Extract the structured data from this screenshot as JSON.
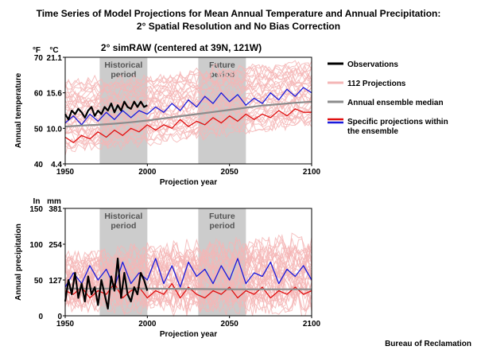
{
  "figure": {
    "title_line1": "Time Series of Model Projections for Mean Annual Temperature and Annual Precipitation:",
    "title_line2": "2° Spatial Resolution and No Bias Correction",
    "subtitle": "2° simRAW (centered at 39N, 121W)",
    "credit": "Bureau of Reclamation"
  },
  "legend": {
    "items": [
      {
        "label": "Observations",
        "color": "#000000"
      },
      {
        "label": "112 Projections",
        "color": "#f4b6b6"
      },
      {
        "label": "Annual ensemble median",
        "color": "#8c8c8c"
      },
      {
        "label_line1": "Specific projections within",
        "label_line2": "the ensemble",
        "colors": [
          "#e01010",
          "#1a1adc"
        ]
      }
    ]
  },
  "shading": {
    "historical": {
      "label_line1": "Historical",
      "label_line2": "period",
      "start": 1971,
      "end": 2000
    },
    "future": {
      "label_line1": "Future",
      "label_line2": "period",
      "start": 2031,
      "end": 2060
    }
  },
  "colors": {
    "projections": "#f4b6b6",
    "median": "#8c8c8c",
    "red": "#e01010",
    "blue": "#1a1adc",
    "obs": "#000000",
    "shade": "#cccccc"
  },
  "chart_data": [
    {
      "type": "line",
      "ylabel": "Annual temperature",
      "xlabel": "Projection year",
      "unit_left": "°F",
      "unit_right": "°C",
      "xlim": [
        1950,
        2100
      ],
      "ylim": [
        40,
        70
      ],
      "xticks": [
        "1950",
        "2000",
        "2050",
        "2100"
      ],
      "yticks_f": [
        "40",
        "50",
        "60",
        "70"
      ],
      "yticks_c": [
        "4.4",
        "10.0",
        "15.6",
        "21.1"
      ],
      "observations": [
        [
          1950,
          54.0
        ],
        [
          1952,
          52.5
        ],
        [
          1954,
          55.0
        ],
        [
          1956,
          54.0
        ],
        [
          1958,
          55.5
        ],
        [
          1960,
          54.5
        ],
        [
          1962,
          53.0
        ],
        [
          1964,
          55.0
        ],
        [
          1966,
          56.0
        ],
        [
          1968,
          53.5
        ],
        [
          1970,
          55.0
        ],
        [
          1972,
          54.0
        ],
        [
          1974,
          56.0
        ],
        [
          1976,
          55.0
        ],
        [
          1978,
          57.0
        ],
        [
          1980,
          54.5
        ],
        [
          1982,
          56.5
        ],
        [
          1984,
          55.0
        ],
        [
          1986,
          57.5
        ],
        [
          1988,
          56.0
        ],
        [
          1990,
          55.5
        ],
        [
          1992,
          57.5
        ],
        [
          1994,
          56.0
        ],
        [
          1996,
          57.5
        ],
        [
          1998,
          56.0
        ],
        [
          2000,
          56.5
        ]
      ],
      "median": [
        [
          1950,
          50.5
        ],
        [
          1960,
          50.8
        ],
        [
          1970,
          51.0
        ],
        [
          1980,
          51.3
        ],
        [
          1990,
          51.7
        ],
        [
          2000,
          52.2
        ],
        [
          2010,
          52.8
        ],
        [
          2020,
          53.4
        ],
        [
          2030,
          54.0
        ],
        [
          2040,
          54.6
        ],
        [
          2050,
          55.2
        ],
        [
          2060,
          55.8
        ],
        [
          2070,
          56.4
        ],
        [
          2080,
          56.8
        ],
        [
          2090,
          57.2
        ],
        [
          2100,
          57.5
        ]
      ],
      "red_projection": [
        [
          1950,
          47.5
        ],
        [
          1955,
          46.0
        ],
        [
          1960,
          48.0
        ],
        [
          1965,
          47.0
        ],
        [
          1970,
          49.0
        ],
        [
          1975,
          47.5
        ],
        [
          1980,
          49.5
        ],
        [
          1985,
          48.0
        ],
        [
          1990,
          50.0
        ],
        [
          1995,
          49.0
        ],
        [
          2000,
          51.0
        ],
        [
          2005,
          49.5
        ],
        [
          2010,
          51.0
        ],
        [
          2015,
          50.0
        ],
        [
          2020,
          52.5
        ],
        [
          2025,
          50.5
        ],
        [
          2030,
          52.0
        ],
        [
          2035,
          51.0
        ],
        [
          2040,
          53.0
        ],
        [
          2045,
          51.5
        ],
        [
          2050,
          53.5
        ],
        [
          2055,
          52.0
        ],
        [
          2060,
          54.0
        ],
        [
          2065,
          52.5
        ],
        [
          2070,
          54.0
        ],
        [
          2075,
          53.0
        ],
        [
          2080,
          55.0
        ],
        [
          2085,
          53.5
        ],
        [
          2090,
          55.5
        ],
        [
          2095,
          54.5
        ],
        [
          2100,
          54.5
        ]
      ],
      "blue_projection": [
        [
          1950,
          51.5
        ],
        [
          1955,
          53.5
        ],
        [
          1960,
          51.0
        ],
        [
          1965,
          54.0
        ],
        [
          1970,
          52.0
        ],
        [
          1975,
          54.5
        ],
        [
          1980,
          52.5
        ],
        [
          1985,
          55.0
        ],
        [
          1990,
          53.0
        ],
        [
          1995,
          55.0
        ],
        [
          2000,
          54.0
        ],
        [
          2005,
          56.0
        ],
        [
          2010,
          54.5
        ],
        [
          2015,
          57.0
        ],
        [
          2020,
          55.0
        ],
        [
          2025,
          58.0
        ],
        [
          2030,
          56.0
        ],
        [
          2035,
          59.0
        ],
        [
          2040,
          57.0
        ],
        [
          2045,
          60.0
        ],
        [
          2050,
          57.5
        ],
        [
          2055,
          59.5
        ],
        [
          2060,
          56.5
        ],
        [
          2065,
          58.5
        ],
        [
          2070,
          57.0
        ],
        [
          2075,
          60.0
        ],
        [
          2080,
          58.0
        ],
        [
          2085,
          61.0
        ],
        [
          2090,
          59.0
        ],
        [
          2095,
          61.5
        ],
        [
          2100,
          60.0
        ]
      ],
      "projection_envelope": {
        "low": [
          [
            1950,
            44
          ],
          [
            2000,
            46
          ],
          [
            2050,
            49
          ],
          [
            2100,
            51
          ]
        ],
        "high": [
          [
            1950,
            63
          ],
          [
            2000,
            64
          ],
          [
            2050,
            67
          ],
          [
            2100,
            68
          ]
        ]
      }
    },
    {
      "type": "line",
      "ylabel": "Annual precipitation",
      "xlabel": "Projection year",
      "unit_left": "In",
      "unit_right": "mm",
      "xlim": [
        1950,
        2100
      ],
      "ylim": [
        0,
        150
      ],
      "xticks": [
        "1950",
        "2000",
        "2050",
        "2100"
      ],
      "yticks_in": [
        "0",
        "50",
        "100",
        "150"
      ],
      "yticks_mm": [
        "0",
        "127",
        "254",
        "381"
      ],
      "observations": [
        [
          1950,
          20
        ],
        [
          1952,
          50
        ],
        [
          1954,
          30
        ],
        [
          1956,
          60
        ],
        [
          1958,
          25
        ],
        [
          1960,
          45
        ],
        [
          1962,
          20
        ],
        [
          1964,
          55
        ],
        [
          1966,
          30
        ],
        [
          1968,
          40
        ],
        [
          1970,
          15
        ],
        [
          1972,
          50
        ],
        [
          1974,
          30
        ],
        [
          1976,
          10
        ],
        [
          1978,
          55
        ],
        [
          1980,
          35
        ],
        [
          1982,
          80
        ],
        [
          1984,
          25
        ],
        [
          1986,
          60
        ],
        [
          1988,
          30
        ],
        [
          1990,
          20
        ],
        [
          1992,
          40
        ],
        [
          1994,
          30
        ],
        [
          1996,
          60
        ],
        [
          1998,
          50
        ],
        [
          2000,
          35
        ]
      ],
      "median": [
        [
          1950,
          38
        ],
        [
          2000,
          38
        ],
        [
          2050,
          37
        ],
        [
          2100,
          37
        ]
      ],
      "red_projection": [
        [
          1950,
          35
        ],
        [
          1955,
          30
        ],
        [
          1960,
          40
        ],
        [
          1965,
          25
        ],
        [
          1970,
          35
        ],
        [
          1975,
          30
        ],
        [
          1980,
          45
        ],
        [
          1985,
          25
        ],
        [
          1990,
          35
        ],
        [
          1995,
          40
        ],
        [
          2000,
          25
        ],
        [
          2005,
          35
        ],
        [
          2010,
          30
        ],
        [
          2015,
          45
        ],
        [
          2020,
          25
        ],
        [
          2025,
          40
        ],
        [
          2030,
          30
        ],
        [
          2035,
          25
        ],
        [
          2040,
          35
        ],
        [
          2045,
          30
        ],
        [
          2050,
          40
        ],
        [
          2055,
          25
        ],
        [
          2060,
          35
        ],
        [
          2065,
          30
        ],
        [
          2070,
          40
        ],
        [
          2075,
          25
        ],
        [
          2080,
          35
        ],
        [
          2085,
          30
        ],
        [
          2090,
          40
        ],
        [
          2095,
          30
        ],
        [
          2100,
          35
        ]
      ],
      "blue_projection": [
        [
          1950,
          40
        ],
        [
          1955,
          60
        ],
        [
          1960,
          45
        ],
        [
          1965,
          70
        ],
        [
          1970,
          50
        ],
        [
          1975,
          65
        ],
        [
          1980,
          40
        ],
        [
          1985,
          75
        ],
        [
          1990,
          45
        ],
        [
          1995,
          60
        ],
        [
          2000,
          50
        ],
        [
          2005,
          80
        ],
        [
          2010,
          45
        ],
        [
          2015,
          70
        ],
        [
          2020,
          40
        ],
        [
          2025,
          75
        ],
        [
          2030,
          55
        ],
        [
          2035,
          65
        ],
        [
          2040,
          45
        ],
        [
          2045,
          70
        ],
        [
          2050,
          50
        ],
        [
          2055,
          80
        ],
        [
          2060,
          45
        ],
        [
          2065,
          60
        ],
        [
          2070,
          55
        ],
        [
          2075,
          75
        ],
        [
          2080,
          45
        ],
        [
          2085,
          65
        ],
        [
          2090,
          55
        ],
        [
          2095,
          70
        ],
        [
          2100,
          50
        ]
      ],
      "projection_envelope": {
        "low": [
          [
            1950,
            15
          ],
          [
            2100,
            15
          ]
        ],
        "high": [
          [
            1950,
            80
          ],
          [
            2000,
            90
          ],
          [
            2050,
            95
          ],
          [
            2100,
            100
          ]
        ]
      }
    }
  ]
}
